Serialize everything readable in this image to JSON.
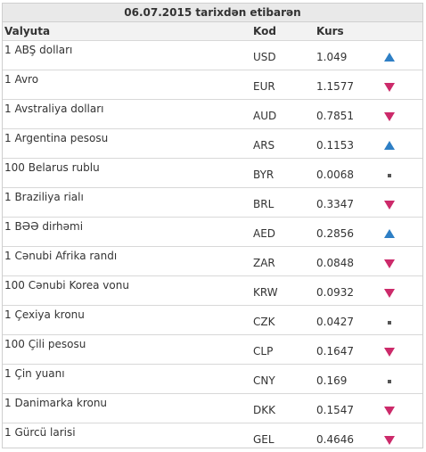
{
  "table": {
    "title": "06.07.2015 tarixdən etibarən",
    "headers": {
      "name": "Valyuta",
      "code": "Kod",
      "rate": "Kurs"
    },
    "colors": {
      "up": "#2e7fc5",
      "down": "#cc2a6a",
      "same": "#555555"
    },
    "rows": [
      {
        "name": "1 ABŞ dolları",
        "code": "USD",
        "rate": "1.049",
        "trend": "up"
      },
      {
        "name": "1 Avro",
        "code": "EUR",
        "rate": "1.1577",
        "trend": "down"
      },
      {
        "name": "1 Avstraliya dolları",
        "code": "AUD",
        "rate": "0.7851",
        "trend": "down"
      },
      {
        "name": "1 Argentina pesosu",
        "code": "ARS",
        "rate": "0.1153",
        "trend": "up"
      },
      {
        "name": "100 Belarus rublu",
        "code": "BYR",
        "rate": "0.0068",
        "trend": "same"
      },
      {
        "name": "1 Braziliya rialı",
        "code": "BRL",
        "rate": "0.3347",
        "trend": "down"
      },
      {
        "name": "1 BƏƏ dirhəmi",
        "code": "AED",
        "rate": "0.2856",
        "trend": "up"
      },
      {
        "name": "1 Cənubi Afrika randı",
        "code": "ZAR",
        "rate": "0.0848",
        "trend": "down"
      },
      {
        "name": "100 Cənubi Korea vonu",
        "code": "KRW",
        "rate": "0.0932",
        "trend": "down"
      },
      {
        "name": "1 Çexiya kronu",
        "code": "CZK",
        "rate": "0.0427",
        "trend": "same"
      },
      {
        "name": "100 Çili pesosu",
        "code": "CLP",
        "rate": "0.1647",
        "trend": "down"
      },
      {
        "name": "1 Çin yuanı",
        "code": "CNY",
        "rate": "0.169",
        "trend": "same"
      },
      {
        "name": "1 Danimarka kronu",
        "code": "DKK",
        "rate": "0.1547",
        "trend": "down"
      },
      {
        "name": "1 Gürcü larisi",
        "code": "GEL",
        "rate": "0.4646",
        "trend": "down"
      }
    ]
  }
}
